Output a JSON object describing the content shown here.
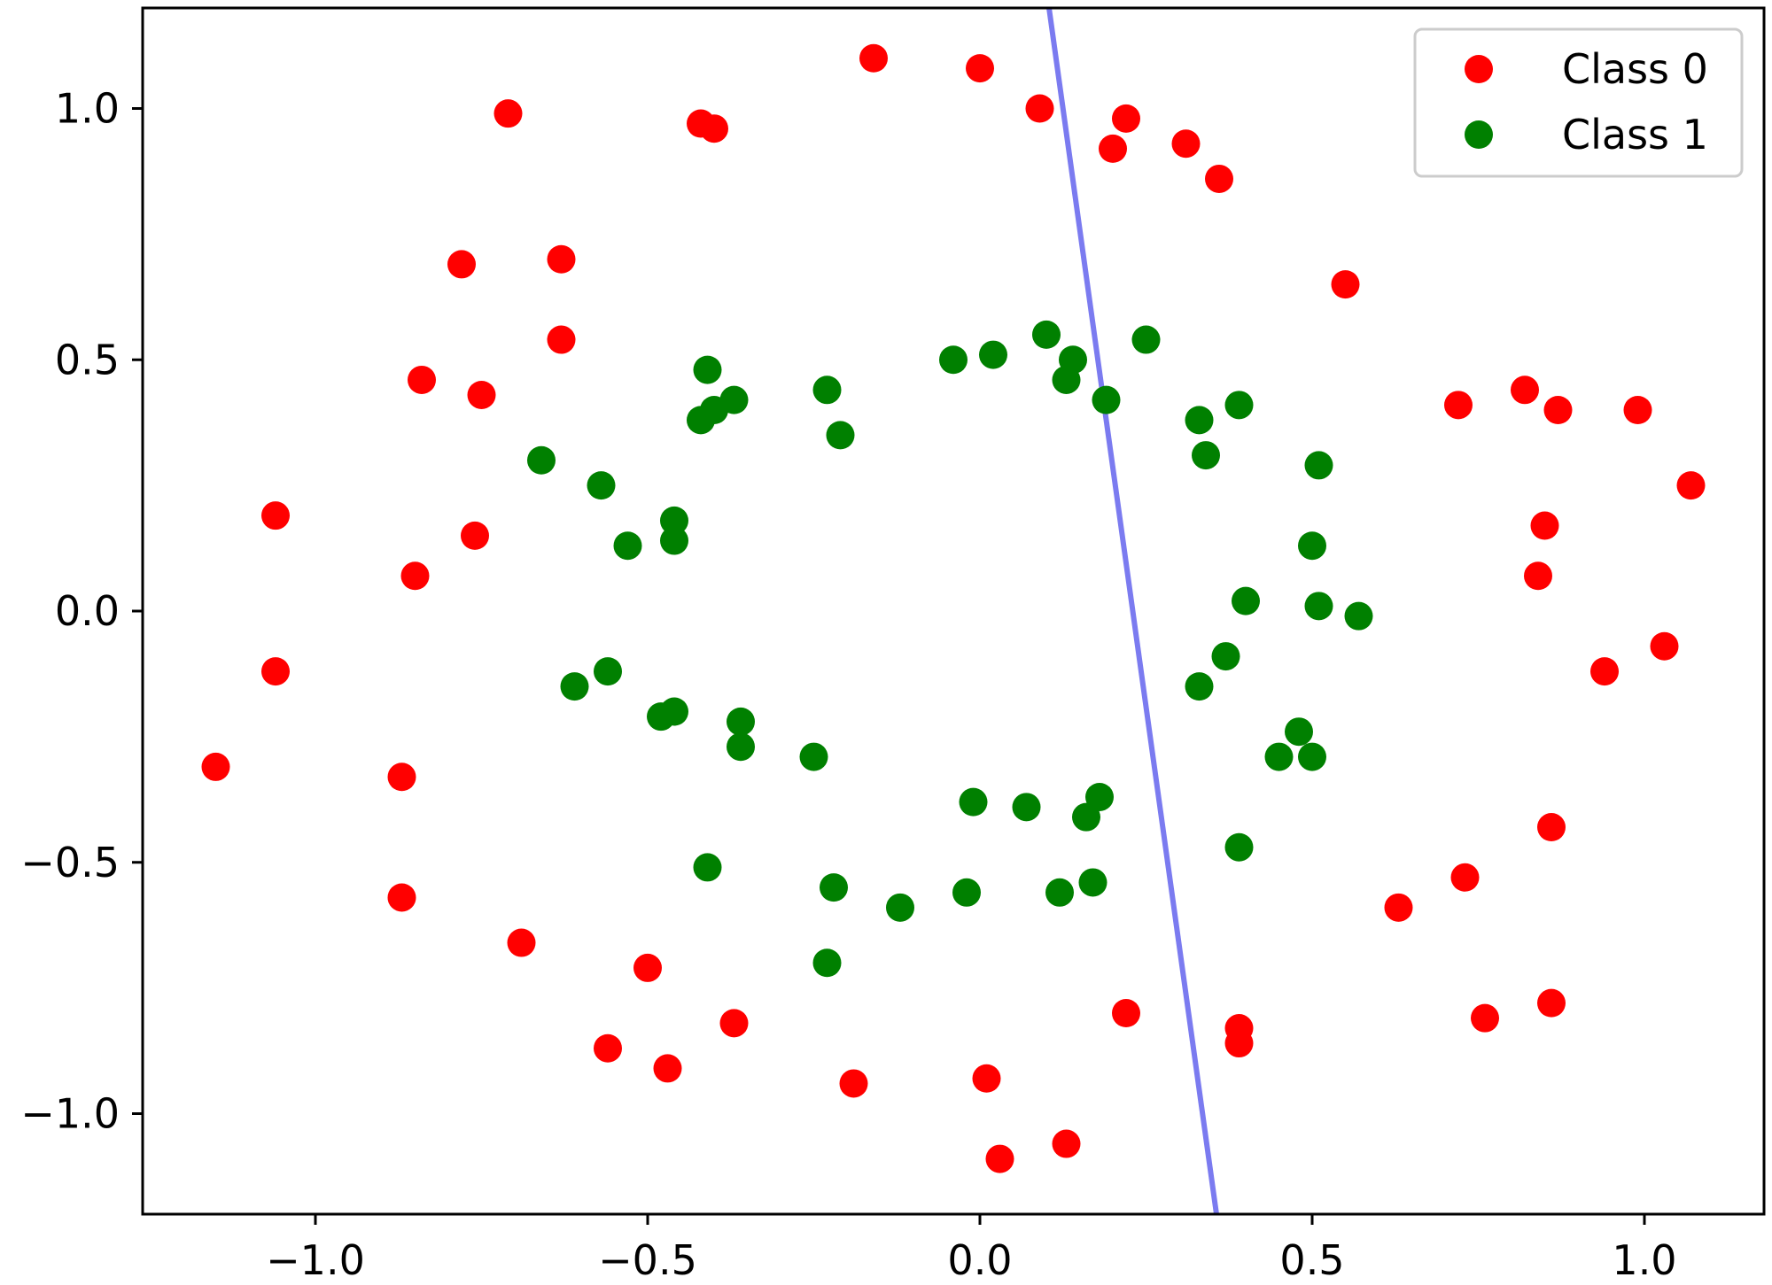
{
  "chart_data": {
    "type": "scatter",
    "title": "",
    "xlabel": "",
    "ylabel": "",
    "xlim": [
      -1.26,
      1.18
    ],
    "ylim": [
      -1.2,
      1.2
    ],
    "grid": false,
    "legend_placement": "top-right",
    "xticks": [
      -1.0,
      -0.5,
      0.0,
      0.5,
      1.0
    ],
    "yticks": [
      -1.0,
      -0.5,
      0.0,
      0.5,
      1.0
    ],
    "xtick_labels": [
      "−1.0",
      "−0.5",
      "0.0",
      "0.5",
      "1.0"
    ],
    "ytick_labels": [
      "−1.0",
      "−0.5",
      "0.0",
      "0.5",
      "1.0"
    ],
    "series": [
      {
        "name": "Class 0",
        "color": "#ff0000",
        "points": [
          [
            -0.16,
            1.1
          ],
          [
            0.0,
            1.08
          ],
          [
            0.09,
            1.0
          ],
          [
            0.22,
            0.98
          ],
          [
            0.2,
            0.92
          ],
          [
            0.31,
            0.93
          ],
          [
            0.36,
            0.86
          ],
          [
            -0.71,
            0.99
          ],
          [
            -0.42,
            0.97
          ],
          [
            -0.4,
            0.96
          ],
          [
            -0.78,
            0.69
          ],
          [
            -0.63,
            0.7
          ],
          [
            -0.63,
            0.54
          ],
          [
            -0.84,
            0.46
          ],
          [
            -0.75,
            0.43
          ],
          [
            0.55,
            0.65
          ],
          [
            0.72,
            0.41
          ],
          [
            0.82,
            0.44
          ],
          [
            0.87,
            0.4
          ],
          [
            0.99,
            0.4
          ],
          [
            1.07,
            0.25
          ],
          [
            0.85,
            0.17
          ],
          [
            0.84,
            0.07
          ],
          [
            1.03,
            -0.07
          ],
          [
            0.94,
            -0.12
          ],
          [
            -1.06,
            0.19
          ],
          [
            -0.76,
            0.15
          ],
          [
            -0.85,
            0.07
          ],
          [
            -1.06,
            -0.12
          ],
          [
            -1.15,
            -0.31
          ],
          [
            -0.87,
            -0.33
          ],
          [
            -0.87,
            -0.57
          ],
          [
            -0.69,
            -0.66
          ],
          [
            -0.5,
            -0.71
          ],
          [
            -0.56,
            -0.87
          ],
          [
            -0.47,
            -0.91
          ],
          [
            -0.37,
            -0.82
          ],
          [
            -0.19,
            -0.94
          ],
          [
            0.01,
            -0.93
          ],
          [
            0.03,
            -1.09
          ],
          [
            0.13,
            -1.06
          ],
          [
            0.22,
            -0.8
          ],
          [
            0.39,
            -0.83
          ],
          [
            0.39,
            -0.86
          ],
          [
            0.63,
            -0.59
          ],
          [
            0.73,
            -0.53
          ],
          [
            0.86,
            -0.43
          ],
          [
            0.76,
            -0.81
          ],
          [
            0.86,
            -0.78
          ]
        ]
      },
      {
        "name": "Class 1",
        "color": "#008000",
        "points": [
          [
            0.1,
            0.55
          ],
          [
            0.25,
            0.54
          ],
          [
            -0.04,
            0.5
          ],
          [
            0.02,
            0.51
          ],
          [
            0.14,
            0.5
          ],
          [
            0.13,
            0.46
          ],
          [
            0.19,
            0.42
          ],
          [
            -0.41,
            0.48
          ],
          [
            -0.23,
            0.44
          ],
          [
            -0.37,
            0.42
          ],
          [
            -0.4,
            0.4
          ],
          [
            -0.42,
            0.38
          ],
          [
            -0.21,
            0.35
          ],
          [
            0.33,
            0.38
          ],
          [
            0.39,
            0.41
          ],
          [
            0.34,
            0.31
          ],
          [
            0.51,
            0.29
          ],
          [
            -0.66,
            0.3
          ],
          [
            -0.57,
            0.25
          ],
          [
            -0.46,
            0.18
          ],
          [
            -0.46,
            0.14
          ],
          [
            -0.53,
            0.13
          ],
          [
            0.5,
            0.13
          ],
          [
            0.4,
            0.02
          ],
          [
            0.51,
            0.01
          ],
          [
            0.57,
            -0.01
          ],
          [
            0.37,
            -0.09
          ],
          [
            0.33,
            -0.15
          ],
          [
            -0.61,
            -0.15
          ],
          [
            -0.56,
            -0.12
          ],
          [
            -0.48,
            -0.21
          ],
          [
            -0.46,
            -0.2
          ],
          [
            -0.36,
            -0.22
          ],
          [
            -0.36,
            -0.27
          ],
          [
            -0.25,
            -0.29
          ],
          [
            0.48,
            -0.24
          ],
          [
            0.45,
            -0.29
          ],
          [
            0.5,
            -0.29
          ],
          [
            -0.01,
            -0.38
          ],
          [
            0.07,
            -0.39
          ],
          [
            0.16,
            -0.41
          ],
          [
            0.18,
            -0.37
          ],
          [
            0.39,
            -0.47
          ],
          [
            -0.41,
            -0.51
          ],
          [
            -0.22,
            -0.55
          ],
          [
            -0.12,
            -0.59
          ],
          [
            -0.02,
            -0.56
          ],
          [
            0.12,
            -0.56
          ],
          [
            0.17,
            -0.54
          ],
          [
            -0.23,
            -0.7
          ]
        ]
      }
    ],
    "lines": [
      {
        "color": "#7b7bf0",
        "points": [
          [
            0.104,
            1.2
          ],
          [
            0.356,
            -1.2
          ]
        ]
      }
    ]
  }
}
